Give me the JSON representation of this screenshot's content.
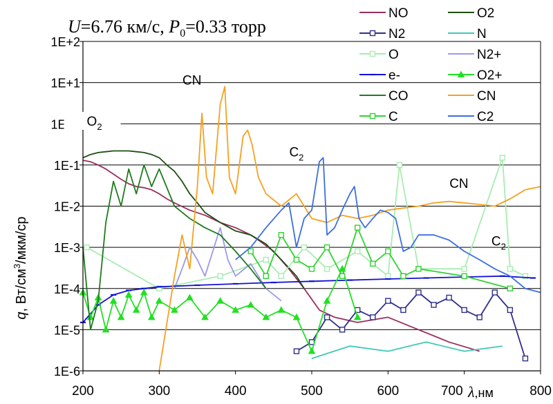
{
  "chart_data": {
    "type": "line",
    "title": "U=6.76 км/с, P0=0.33 торр",
    "title_parts": {
      "u_symbol": "U",
      "u_value": "=6.76 км/с, ",
      "p_symbol": "P",
      "p_subscript": "0",
      "p_value": "=0.33 торр"
    },
    "xlabel": "λ ,нм",
    "xlabel_parts": {
      "symbol": "λ",
      "unit": ",нм"
    },
    "ylabel": "q, Вт/см3/мкм/ср",
    "ylabel_parts": {
      "symbol": "q",
      "unit_a": ", Вт/см",
      "sup": "3",
      "unit_b": "/мкм/ср"
    },
    "x_ticks": [
      200,
      300,
      400,
      500,
      600,
      700,
      800
    ],
    "x_tick_labels": [
      "200",
      "300",
      "400",
      "500",
      "600",
      "700",
      "800"
    ],
    "xlim": [
      200,
      800
    ],
    "y_scale": "log",
    "ylim": [
      1e-06,
      100
    ],
    "y_tick_values": [
      1e-06,
      1e-05,
      0.0001,
      0.001,
      0.01,
      0.1,
      1,
      10,
      100
    ],
    "y_tick_labels": [
      "1E-6",
      "1E-5",
      "1E-4",
      "1E-3",
      "1E-2",
      "1E-1",
      "1E+0",
      "1E+1",
      "1E+2"
    ],
    "grid": "horizontal",
    "legend_position": "top-right",
    "annotations": [
      {
        "text": "O",
        "sub": "2",
        "x": 215,
        "y": 0.9
      },
      {
        "text": "CN",
        "sub": "",
        "x": 343,
        "y": 9
      },
      {
        "text": "C",
        "sub": "2",
        "x": 480,
        "y": 0.16
      },
      {
        "text": "CN",
        "sub": "",
        "x": 693,
        "y": 0.028
      },
      {
        "text": "C",
        "sub": "2",
        "x": 745,
        "y": 0.0011
      }
    ],
    "series": [
      {
        "name": "NO",
        "color": "#9b2d5e",
        "marker": "none",
        "points": [
          [
            200,
            0.13
          ],
          [
            210,
            0.12
          ],
          [
            220,
            0.1
          ],
          [
            230,
            0.08
          ],
          [
            240,
            0.06
          ],
          [
            250,
            0.045
          ],
          [
            260,
            0.035
          ],
          [
            270,
            0.03
          ],
          [
            280,
            0.028
          ],
          [
            290,
            0.025
          ],
          [
            300,
            0.02
          ],
          [
            310,
            0.015
          ],
          [
            320,
            0.012
          ],
          [
            340,
            0.008
          ],
          [
            360,
            0.006
          ],
          [
            380,
            0.004
          ],
          [
            400,
            0.003
          ],
          [
            420,
            0.002
          ],
          [
            430,
            0.0015
          ],
          [
            450,
            0.0008
          ],
          [
            470,
            0.0003
          ],
          [
            490,
            0.0001
          ],
          [
            510,
            3e-05
          ],
          [
            530,
            2e-05
          ],
          [
            560,
            1.5e-05
          ],
          [
            600,
            2e-05
          ],
          [
            640,
            1e-05
          ],
          [
            680,
            5e-06
          ],
          [
            720,
            3e-06
          ]
        ]
      },
      {
        "name": "O2",
        "color": "#1e4d12",
        "marker": "none",
        "points": [
          [
            200,
            0.15
          ],
          [
            210,
            0.18
          ],
          [
            220,
            0.2
          ],
          [
            230,
            0.21
          ],
          [
            240,
            0.22
          ],
          [
            250,
            0.22
          ],
          [
            260,
            0.22
          ],
          [
            270,
            0.21
          ],
          [
            280,
            0.2
          ],
          [
            290,
            0.18
          ],
          [
            300,
            0.15
          ],
          [
            310,
            0.1
          ],
          [
            320,
            0.07
          ],
          [
            330,
            0.04
          ],
          [
            340,
            0.02
          ],
          [
            350,
            0.012
          ],
          [
            360,
            0.007
          ],
          [
            380,
            0.004
          ],
          [
            400,
            0.0025
          ],
          [
            420,
            0.002
          ],
          [
            440,
            0.0012
          ],
          [
            460,
            0.0005
          ],
          [
            480,
            0.0002
          ],
          [
            490,
            0.0001
          ]
        ]
      },
      {
        "name": "N2",
        "color": "#2e2e8a",
        "marker": "square",
        "points": [
          [
            480,
            3e-06
          ],
          [
            500,
            5e-06
          ],
          [
            520,
            2e-05
          ],
          [
            540,
            1e-05
          ],
          [
            560,
            3e-05
          ],
          [
            580,
            2e-05
          ],
          [
            600,
            5e-05
          ],
          [
            620,
            3e-05
          ],
          [
            640,
            8e-05
          ],
          [
            660,
            4e-05
          ],
          [
            680,
            6e-05
          ],
          [
            700,
            3e-05
          ],
          [
            720,
            2e-05
          ],
          [
            740,
            8e-05
          ],
          [
            760,
            3e-05
          ],
          [
            780,
            2e-06
          ]
        ]
      },
      {
        "name": "N",
        "color": "#3cc8b8",
        "marker": "none",
        "points": [
          [
            500,
            2e-06
          ],
          [
            550,
            4e-06
          ],
          [
            600,
            3e-06
          ],
          [
            650,
            5e-06
          ],
          [
            700,
            3e-06
          ],
          [
            750,
            4e-06
          ]
        ]
      },
      {
        "name": "O",
        "color": "#a8ecb0",
        "marker": "square",
        "points": [
          [
            205,
            0.001
          ],
          [
            300,
            0.0001
          ],
          [
            380,
            0.0002
          ],
          [
            440,
            0.0005
          ],
          [
            460,
            0.0002
          ],
          [
            490,
            0.001
          ],
          [
            520,
            0.0003
          ],
          [
            560,
            0.0008
          ],
          [
            600,
            0.0002
          ],
          [
            615,
            0.1
          ],
          [
            640,
            0.0003
          ],
          [
            700,
            0.0003
          ],
          [
            750,
            0.15
          ],
          [
            760,
            0.0003
          ],
          [
            780,
            0.0002
          ]
        ]
      },
      {
        "name": "N2+",
        "color": "#9a9ae8",
        "marker": "none",
        "points": [
          [
            320,
            0.0001
          ],
          [
            330,
            0.0003
          ],
          [
            340,
            0.001
          ],
          [
            350,
            0.0005
          ],
          [
            360,
            0.0002
          ],
          [
            380,
            0.003
          ],
          [
            390,
            0.0005
          ],
          [
            400,
            0.0002
          ],
          [
            420,
            0.0004
          ],
          [
            440,
            0.0001
          ],
          [
            460,
            5e-05
          ]
        ]
      },
      {
        "name": "e-",
        "color": "#1010d8",
        "marker": "dash",
        "points": [
          [
            200,
            1.5e-05
          ],
          [
            220,
            4e-05
          ],
          [
            240,
            7e-05
          ],
          [
            260,
            9e-05
          ],
          [
            280,
            0.0001
          ],
          [
            300,
            0.00011
          ],
          [
            350,
            0.00012
          ],
          [
            400,
            0.00013
          ],
          [
            450,
            0.00014
          ],
          [
            500,
            0.00015
          ],
          [
            550,
            0.00016
          ],
          [
            600,
            0.00017
          ],
          [
            650,
            0.00018
          ],
          [
            700,
            0.00019
          ],
          [
            750,
            0.0002
          ],
          [
            790,
            0.00018
          ]
        ]
      },
      {
        "name": "O2+",
        "color": "#22e022",
        "marker": "triangle",
        "points": [
          [
            200,
            8e-05
          ],
          [
            210,
            2e-05
          ],
          [
            220,
            6e-05
          ],
          [
            230,
            1e-05
          ],
          [
            240,
            5e-05
          ],
          [
            250,
            2e-05
          ],
          [
            260,
            7e-05
          ],
          [
            270,
            3e-05
          ],
          [
            280,
            8e-05
          ],
          [
            290,
            2e-05
          ],
          [
            300,
            5e-05
          ],
          [
            320,
            3e-05
          ],
          [
            340,
            6e-05
          ],
          [
            360,
            2e-05
          ],
          [
            380,
            5e-05
          ],
          [
            400,
            3e-05
          ],
          [
            420,
            4e-05
          ],
          [
            440,
            2e-05
          ],
          [
            460,
            3e-05
          ],
          [
            480,
            2e-05
          ],
          [
            500,
            3e-06
          ],
          [
            520,
            5e-05
          ],
          [
            540,
            0.0003
          ],
          [
            560,
            2e-05
          ]
        ]
      },
      {
        "name": "CO",
        "color": "#1e7a1e",
        "marker": "none",
        "points": [
          [
            200,
            0.001
          ],
          [
            210,
            1e-05
          ],
          [
            220,
            5e-05
          ],
          [
            230,
            0.004
          ],
          [
            240,
            0.04
          ],
          [
            250,
            0.01
          ],
          [
            260,
            0.08
          ],
          [
            270,
            0.02
          ],
          [
            280,
            0.1
          ],
          [
            290,
            0.03
          ],
          [
            300,
            0.08
          ],
          [
            320,
            0.01
          ],
          [
            340,
            0.005
          ],
          [
            360,
            0.003
          ],
          [
            380,
            0.002
          ],
          [
            400,
            0.0008
          ],
          [
            420,
            0.0003
          ],
          [
            440,
            0.0001
          ]
        ]
      },
      {
        "name": "CN",
        "color": "#f5a020",
        "marker": "none",
        "points": [
          [
            300,
            1e-06
          ],
          [
            320,
            0.0002
          ],
          [
            330,
            0.002
          ],
          [
            340,
            0.0003
          ],
          [
            350,
            0.03
          ],
          [
            356,
            1.8
          ],
          [
            362,
            0.05
          ],
          [
            370,
            0.02
          ],
          [
            380,
            3.0
          ],
          [
            386,
            8.0
          ],
          [
            392,
            0.05
          ],
          [
            400,
            0.02
          ],
          [
            410,
            0.5
          ],
          [
            416,
            0.7
          ],
          [
            422,
            0.3
          ],
          [
            430,
            0.05
          ],
          [
            440,
            0.02
          ],
          [
            460,
            0.01
          ],
          [
            480,
            0.02
          ],
          [
            500,
            0.005
          ],
          [
            520,
            0.004
          ],
          [
            540,
            0.006
          ],
          [
            560,
            0.005
          ],
          [
            580,
            0.006
          ],
          [
            600,
            0.008
          ],
          [
            620,
            0.009
          ],
          [
            640,
            0.01
          ],
          [
            660,
            0.012
          ],
          [
            680,
            0.013
          ],
          [
            700,
            0.012
          ],
          [
            720,
            0.011
          ],
          [
            740,
            0.01
          ],
          [
            760,
            0.015
          ],
          [
            780,
            0.025
          ],
          [
            800,
            0.03
          ]
        ]
      },
      {
        "name": "C",
        "color": "#30d230",
        "marker": "square",
        "points": [
          [
            420,
            0.0008
          ],
          [
            440,
            0.0002
          ],
          [
            460,
            0.002
          ],
          [
            480,
            0.0005
          ],
          [
            500,
            0.0003
          ],
          [
            520,
            0.001
          ],
          [
            540,
            0.0002
          ],
          [
            560,
            0.003
          ],
          [
            580,
            0.0004
          ],
          [
            600,
            0.0008
          ],
          [
            620,
            0.0002
          ],
          [
            640,
            0.0003
          ],
          [
            700,
            0.0002
          ],
          [
            760,
            0.0001
          ]
        ]
      },
      {
        "name": "C2",
        "color": "#3a6ee0",
        "marker": "none",
        "points": [
          [
            400,
            0.0005
          ],
          [
            420,
            0.001
          ],
          [
            440,
            0.003
          ],
          [
            460,
            0.008
          ],
          [
            470,
            0.012
          ],
          [
            480,
            0.001
          ],
          [
            490,
            0.005
          ],
          [
            500,
            0.008
          ],
          [
            510,
            0.12
          ],
          [
            515,
            0.15
          ],
          [
            520,
            0.002
          ],
          [
            530,
            0.003
          ],
          [
            540,
            0.008
          ],
          [
            550,
            0.02
          ],
          [
            556,
            0.03
          ],
          [
            562,
            0.005
          ],
          [
            570,
            0.003
          ],
          [
            580,
            0.005
          ],
          [
            590,
            0.008
          ],
          [
            600,
            0.007
          ],
          [
            610,
            0.005
          ],
          [
            620,
            0.0008
          ],
          [
            630,
            0.001
          ],
          [
            640,
            0.002
          ],
          [
            660,
            0.002
          ],
          [
            680,
            0.0015
          ],
          [
            700,
            0.0008
          ],
          [
            720,
            0.0005
          ],
          [
            740,
            0.0003
          ],
          [
            760,
            0.0002
          ],
          [
            780,
            0.0001
          ],
          [
            800,
            8e-05
          ]
        ]
      }
    ]
  }
}
